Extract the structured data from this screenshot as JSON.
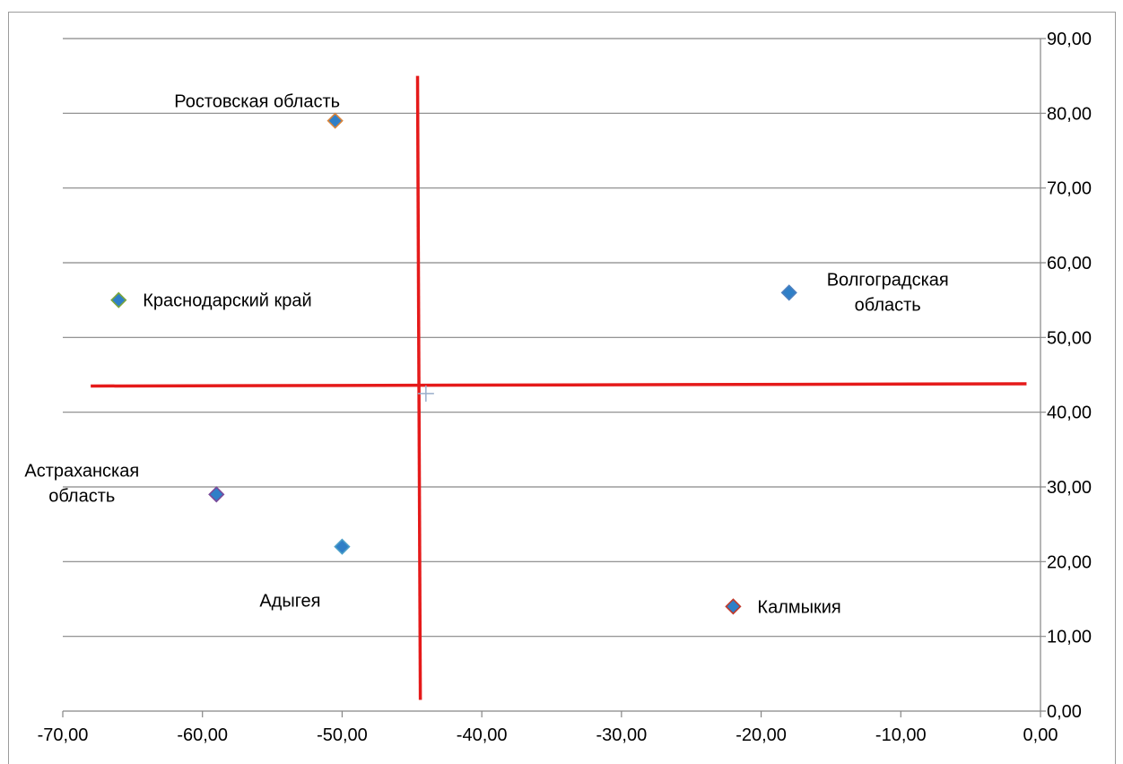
{
  "chart_data": {
    "type": "scatter",
    "xlim": [
      -70,
      0
    ],
    "ylim": [
      0,
      90
    ],
    "x_ticks": [
      "-70,00",
      "-60,00",
      "-50,00",
      "-40,00",
      "-30,00",
      "-20,00",
      "-10,00",
      "0,00"
    ],
    "y_ticks": [
      "0,00",
      "10,00",
      "20,00",
      "30,00",
      "40,00",
      "50,00",
      "60,00",
      "70,00",
      "80,00",
      "90,00"
    ],
    "y_axis_position": "right",
    "grid": "horizontal",
    "points": [
      {
        "label": [
          "Ростовская область"
        ],
        "x": -50.5,
        "y": 79,
        "fill": "#2f7fc7",
        "stroke": "#d9843b",
        "label_pos": "above"
      },
      {
        "label": [
          "Краснодарский край"
        ],
        "x": -66,
        "y": 55,
        "fill": "#2f7fc7",
        "stroke": "#7aa53b",
        "label_pos": "right"
      },
      {
        "label": [
          "Волгоградская",
          "область"
        ],
        "x": -18,
        "y": 56,
        "fill": "#2f7fc7",
        "stroke": "#4a7fc0",
        "label_pos": "right"
      },
      {
        "label": [
          "Астраханская",
          "область"
        ],
        "x": -59,
        "y": 29,
        "fill": "#2f7fc7",
        "stroke": "#7a4a9a",
        "label_pos": "left"
      },
      {
        "label": [
          "Адыгея"
        ],
        "x": -50,
        "y": 22,
        "fill": "#2f7fc7",
        "stroke": "#4a9ec8",
        "label_pos": "below"
      },
      {
        "label": [
          "Калмыкия"
        ],
        "x": -22,
        "y": 14,
        "fill": "#2f7fc7",
        "stroke": "#c0392b",
        "label_pos": "right"
      }
    ],
    "center_marker": {
      "x": -44,
      "y": 42.5,
      "color": "#9aaecb"
    },
    "quadrant_lines": {
      "color": "#e51a1a",
      "vertical": {
        "x_top": -44.6,
        "y_top": 85,
        "x_bottom": -44.4,
        "y_bottom": 1.5
      },
      "horizontal": {
        "x_left": -68,
        "y_left": 43.5,
        "x_right": -1,
        "y_right": 43.8
      }
    }
  }
}
